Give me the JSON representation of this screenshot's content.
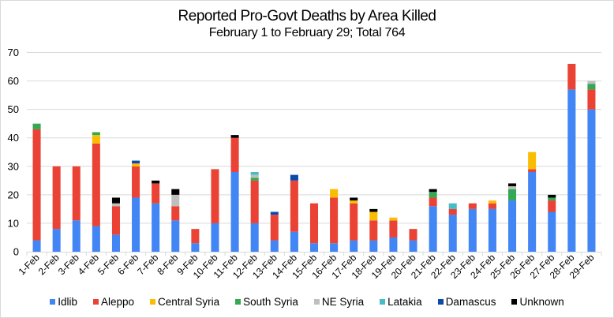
{
  "chart_data": {
    "type": "bar",
    "stacked": true,
    "title": "Reported Pro-Govt Deaths by Area Killed",
    "subtitle": "February 1 to February 29; Total  764",
    "xlabel": "",
    "ylabel": "",
    "ylim": [
      0,
      70
    ],
    "yticks": [
      0,
      10,
      20,
      30,
      40,
      50,
      60,
      70
    ],
    "grid": true,
    "legend": "bottom",
    "categories": [
      "1-Feb",
      "2-Feb",
      "3-Feb",
      "4-Feb",
      "5-Feb",
      "6-Feb",
      "7-Feb",
      "8-Feb",
      "9-Feb",
      "10-Feb",
      "11-Feb",
      "12-Feb",
      "13-Feb",
      "14-Feb",
      "15-Feb",
      "16-Feb",
      "17-Feb",
      "18-Feb",
      "19-Feb",
      "20-Feb",
      "21-Feb",
      "22-Feb",
      "23-Feb",
      "24-Feb",
      "25-Feb",
      "26-Feb",
      "27-Feb",
      "28-Feb",
      "29-Feb"
    ],
    "series": [
      {
        "name": "Idlib",
        "color": "#4285f4",
        "values": [
          4,
          8,
          11,
          9,
          6,
          19,
          17,
          11,
          3,
          10,
          28,
          10,
          4,
          7,
          3,
          3,
          4,
          4,
          5,
          4,
          16,
          13,
          15,
          15,
          18,
          28,
          14,
          57,
          50
        ]
      },
      {
        "name": "Aleppo",
        "color": "#ea4335",
        "values": [
          39,
          22,
          19,
          29,
          10,
          11,
          7,
          5,
          5,
          19,
          12,
          15,
          9,
          18,
          14,
          16,
          13,
          7,
          6,
          4,
          3,
          2,
          2,
          2,
          0,
          1,
          4,
          9,
          7
        ]
      },
      {
        "name": "Central Syria",
        "color": "#fbbc04",
        "values": [
          0,
          0,
          0,
          3,
          0,
          1,
          0,
          0,
          0,
          0,
          0,
          0,
          0,
          0,
          0,
          3,
          1,
          3,
          1,
          0,
          0,
          0,
          0,
          1,
          0,
          6,
          0,
          0,
          0
        ]
      },
      {
        "name": "South Syria",
        "color": "#34a853",
        "values": [
          2,
          0,
          0,
          1,
          0,
          0,
          0,
          0,
          0,
          0,
          0,
          1,
          0,
          0,
          0,
          0,
          0,
          0,
          0,
          0,
          2,
          0,
          0,
          0,
          4,
          0,
          1,
          0,
          2
        ]
      },
      {
        "name": "NE Syria",
        "color": "#bfbfbf",
        "values": [
          0,
          0,
          0,
          0,
          1,
          0,
          0,
          4,
          0,
          0,
          0,
          1,
          0,
          0,
          0,
          0,
          0,
          0,
          0,
          0,
          0,
          0,
          0,
          0,
          1,
          0,
          0,
          0,
          1
        ]
      },
      {
        "name": "Latakia",
        "color": "#46bdc6",
        "values": [
          0,
          0,
          0,
          0,
          0,
          0,
          0,
          0,
          0,
          0,
          0,
          1,
          0,
          0,
          0,
          0,
          0,
          0,
          0,
          0,
          0,
          2,
          0,
          0,
          0,
          0,
          0,
          0,
          0
        ]
      },
      {
        "name": "Damascus",
        "color": "#0b4aad",
        "values": [
          0,
          0,
          0,
          0,
          0,
          1,
          0,
          0,
          0,
          0,
          0,
          0,
          1,
          2,
          0,
          0,
          0,
          0,
          0,
          0,
          0,
          0,
          0,
          0,
          0,
          0,
          0,
          0,
          0
        ]
      },
      {
        "name": "Unknown",
        "color": "#000000",
        "values": [
          0,
          0,
          0,
          0,
          2,
          0,
          1,
          2,
          0,
          0,
          1,
          0,
          0,
          0,
          0,
          0,
          1,
          1,
          0,
          0,
          1,
          0,
          0,
          0,
          1,
          0,
          1,
          0,
          0
        ]
      }
    ]
  }
}
